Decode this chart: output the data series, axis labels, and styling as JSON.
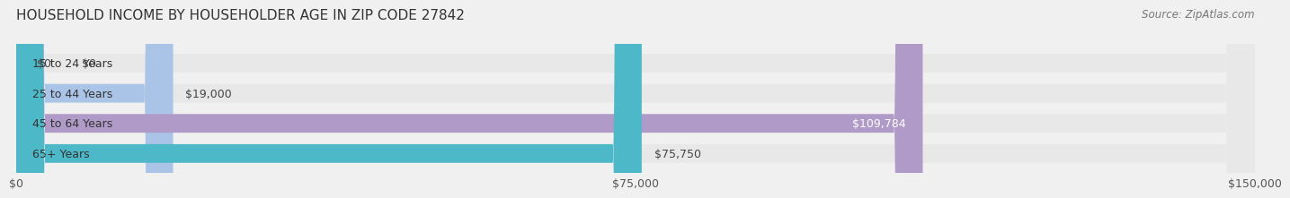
{
  "title": "HOUSEHOLD INCOME BY HOUSEHOLDER AGE IN ZIP CODE 27842",
  "source": "Source: ZipAtlas.com",
  "categories": [
    "15 to 24 Years",
    "25 to 44 Years",
    "45 to 64 Years",
    "65+ Years"
  ],
  "values": [
    0,
    19000,
    109784,
    75750
  ],
  "bar_colors": [
    "#f4a0a0",
    "#aac4e8",
    "#b09ac8",
    "#4db8c8"
  ],
  "label_colors": [
    "#555555",
    "#555555",
    "#ffffff",
    "#555555"
  ],
  "value_labels": [
    "$0",
    "$19,000",
    "$109,784",
    "$75,750"
  ],
  "xlim": [
    0,
    150000
  ],
  "xticks": [
    0,
    75000,
    150000
  ],
  "xticklabels": [
    "$0",
    "$75,000",
    "$150,000"
  ],
  "background_color": "#f0f0f0",
  "bar_background": "#e8e8e8",
  "bar_height": 0.62,
  "title_fontsize": 11,
  "source_fontsize": 8.5,
  "label_fontsize": 9,
  "value_fontsize": 9,
  "tick_fontsize": 9
}
